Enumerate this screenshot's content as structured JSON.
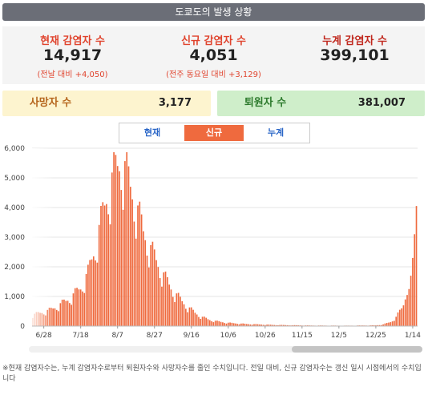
{
  "header": {
    "title": "도쿄도의 발생 상황"
  },
  "stats": {
    "current": {
      "label": "현재 감염자 수",
      "value": "14,917",
      "sub": "(전날 대비 +4,050)",
      "color": "#e0442e"
    },
    "new": {
      "label": "신규 감염자 수",
      "value": "4,051",
      "sub": "(전주 동요일 대비 +3,129)",
      "color": "#e0442e"
    },
    "total": {
      "label": "누계 감염자 수",
      "value": "399,101",
      "color": "#c0281e"
    }
  },
  "deaths": {
    "label": "사망자 수",
    "value": "3,177"
  },
  "recovered": {
    "label": "퇴원자 수",
    "value": "381,007"
  },
  "tabs": [
    {
      "label": "현재",
      "active": false
    },
    {
      "label": "신규",
      "active": true
    },
    {
      "label": "누계",
      "active": false
    }
  ],
  "chart_data": {
    "type": "bar",
    "title": "",
    "xlabel": "",
    "ylabel": "",
    "ylim": [
      0,
      6000
    ],
    "yticks": [
      "0",
      "1,000",
      "2,000",
      "3,000",
      "4,000",
      "5,000",
      "6,000"
    ],
    "xticks": [
      {
        "label": "6/28",
        "x": 6
      },
      {
        "label": "7/18",
        "x": 26
      },
      {
        "label": "8/7",
        "x": 46
      },
      {
        "label": "8/27",
        "x": 66
      },
      {
        "label": "9/16",
        "x": 86
      },
      {
        "label": "10/6",
        "x": 106
      },
      {
        "label": "10/26",
        "x": 126
      },
      {
        "label": "11/15",
        "x": 146
      },
      {
        "label": "12/5",
        "x": 166
      },
      {
        "label": "12/25",
        "x": 186
      },
      {
        "label": "1/14",
        "x": 206
      }
    ],
    "bar_color": "#ef6a3e",
    "keypoints": [
      [
        0,
        380
      ],
      [
        6,
        480
      ],
      [
        10,
        560
      ],
      [
        14,
        700
      ],
      [
        18,
        850
      ],
      [
        22,
        1050
      ],
      [
        26,
        1300
      ],
      [
        30,
        1800
      ],
      [
        34,
        2700
      ],
      [
        38,
        3800
      ],
      [
        41,
        4600
      ],
      [
        44,
        5100
      ],
      [
        46,
        5400
      ],
      [
        48,
        5600
      ],
      [
        50,
        5300
      ],
      [
        53,
        4700
      ],
      [
        56,
        4100
      ],
      [
        60,
        3200
      ],
      [
        64,
        2600
      ],
      [
        68,
        2100
      ],
      [
        72,
        1600
      ],
      [
        76,
        1200
      ],
      [
        80,
        900
      ],
      [
        84,
        650
      ],
      [
        88,
        450
      ],
      [
        92,
        300
      ],
      [
        96,
        210
      ],
      [
        100,
        160
      ],
      [
        106,
        110
      ],
      [
        116,
        70
      ],
      [
        130,
        40
      ],
      [
        150,
        20
      ],
      [
        170,
        15
      ],
      [
        186,
        25
      ],
      [
        190,
        55
      ],
      [
        194,
        140
      ],
      [
        197,
        300
      ],
      [
        199,
        500
      ],
      [
        201,
        700
      ],
      [
        202,
        900
      ],
      [
        203,
        1050
      ],
      [
        204,
        1250
      ],
      [
        205,
        1700
      ],
      [
        206,
        2300
      ],
      [
        207,
        3100
      ],
      [
        208,
        4051
      ]
    ],
    "values": []
  },
  "footnote": "※현재 감염자수는, 누계 감염자수로부터 퇴원자수와 사망자수를 줄인 수치입니다. 전일 대비, 신규 감염자수는 갱신 일시 시점에서의 수치입니다"
}
